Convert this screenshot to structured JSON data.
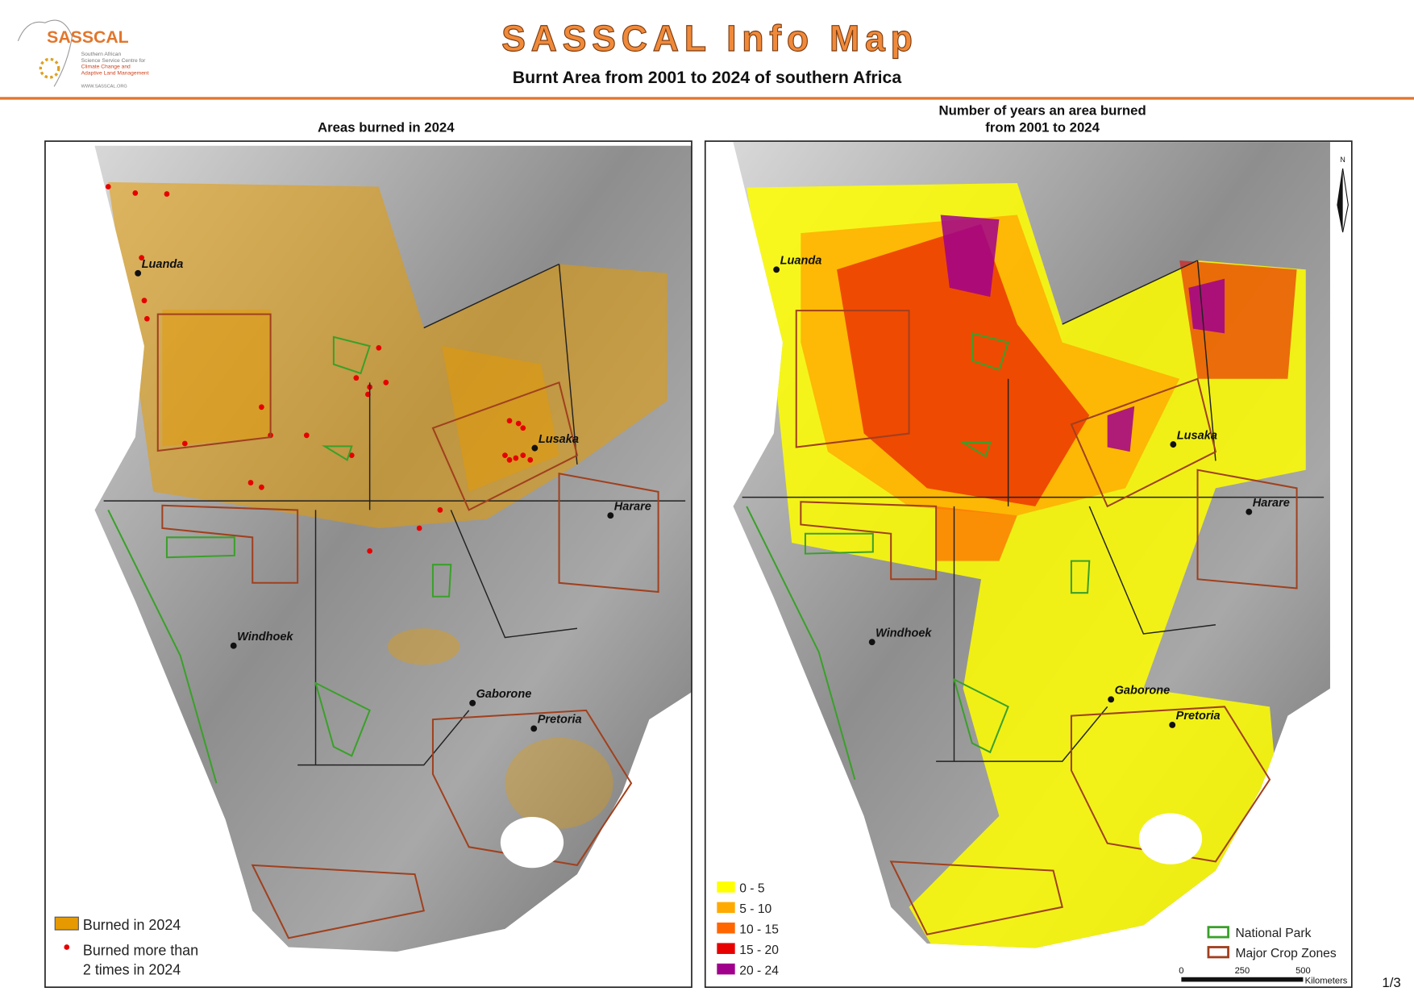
{
  "header": {
    "logo": {
      "name": "SASSCAL",
      "line1": "Southern African",
      "line2": "Science Service Centre for",
      "line3": "Climate Change and",
      "line4": "Adaptive Land Management",
      "url": "WWW.SASSCAL.ORG"
    },
    "title": "SASSCAL Info Map",
    "subtitle": "Burnt Area from 2001 to 2024 of southern Africa"
  },
  "cities": [
    "Luanda",
    "Lusaka",
    "Harare",
    "Windhoek",
    "Gaborone",
    "Pretoria"
  ],
  "left_map": {
    "title": "Areas burned in 2024",
    "legend": [
      {
        "label": "Burned in 2024",
        "color": "#e69a00"
      },
      {
        "label": "Burned more than",
        "label2": "2 times in 2024",
        "color": "#e60000"
      }
    ]
  },
  "right_map": {
    "title_line1": "Number of years an area burned",
    "title_line2": "from 2001 to 2024",
    "legend": [
      {
        "label": "0 - 5",
        "color": "#ffff00"
      },
      {
        "label": "5 - 10",
        "color": "#ffaa00"
      },
      {
        "label": "10 - 15",
        "color": "#ff6600"
      },
      {
        "label": "15 - 20",
        "color": "#e60000"
      },
      {
        "label": "20 - 24",
        "color": "#a0008c"
      }
    ],
    "boundaries": [
      {
        "label": "National Park",
        "color": "#3aa02a"
      },
      {
        "label": "Major Crop Zones",
        "color": "#a0401e"
      }
    ],
    "north": "N",
    "scale": {
      "ticks": [
        0,
        250,
        500
      ],
      "unit": "Kilometers"
    }
  },
  "page": "1/3"
}
